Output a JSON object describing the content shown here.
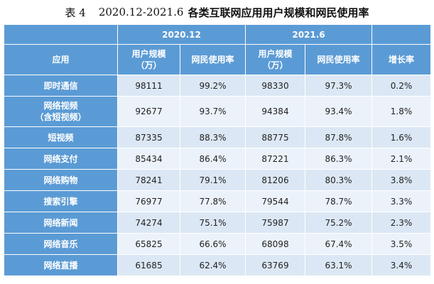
{
  "title": {
    "label": "表 4",
    "range": "2020.12-2021.6",
    "text": "各类互联网应用用户规模和网民使用率"
  },
  "header": {
    "period_a": "2020.12",
    "period_b": "2021.6",
    "app": "应用",
    "users_line1": "用户规模",
    "users_line2": "（万）",
    "rate": "网民使用率",
    "growth": "增长率"
  },
  "rows": [
    {
      "app": "即时通信",
      "app_sub": "",
      "users_a": "98111",
      "rate_a": "99.2%",
      "users_b": "98330",
      "rate_b": "97.3%",
      "growth": "0.2%"
    },
    {
      "app": "网络视频",
      "app_sub": "（含短视频）",
      "users_a": "92677",
      "rate_a": "93.7%",
      "users_b": "94384",
      "rate_b": "93.4%",
      "growth": "1.8%"
    },
    {
      "app": "短视频",
      "app_sub": "",
      "users_a": "87335",
      "rate_a": "88.3%",
      "users_b": "88775",
      "rate_b": "87.8%",
      "growth": "1.6%"
    },
    {
      "app": "网络支付",
      "app_sub": "",
      "users_a": "85434",
      "rate_a": "86.4%",
      "users_b": "87221",
      "rate_b": "86.3%",
      "growth": "2.1%"
    },
    {
      "app": "网络购物",
      "app_sub": "",
      "users_a": "78241",
      "rate_a": "79.1%",
      "users_b": "81206",
      "rate_b": "80.3%",
      "growth": "3.8%"
    },
    {
      "app": "搜索引擎",
      "app_sub": "",
      "users_a": "76977",
      "rate_a": "77.8%",
      "users_b": "79544",
      "rate_b": "78.7%",
      "growth": "3.3%"
    },
    {
      "app": "网络新闻",
      "app_sub": "",
      "users_a": "74274",
      "rate_a": "75.1%",
      "users_b": "75987",
      "rate_b": "75.2%",
      "growth": "2.3%"
    },
    {
      "app": "网络音乐",
      "app_sub": "",
      "users_a": "65825",
      "rate_a": "66.6%",
      "users_b": "68098",
      "rate_b": "67.4%",
      "growth": "3.5%"
    },
    {
      "app": "网络直播",
      "app_sub": "",
      "users_a": "61685",
      "rate_a": "62.4%",
      "users_b": "63769",
      "rate_b": "63.1%",
      "growth": "3.4%"
    }
  ]
}
